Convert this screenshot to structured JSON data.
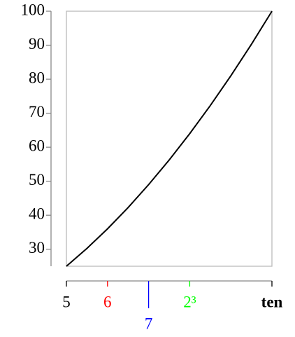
{
  "chart_data": {
    "type": "line",
    "x": [
      5,
      5.5,
      6,
      6.5,
      7,
      7.5,
      8,
      8.5,
      9,
      9.5,
      10
    ],
    "series": [
      {
        "color": "#000000",
        "values": [
          25,
          30.25,
          36,
          42.25,
          49,
          56.25,
          64,
          72.25,
          81,
          90.25,
          100
        ]
      }
    ],
    "xlim": [
      5,
      10
    ],
    "xticks": [
      5,
      6,
      7,
      {
        "value": 8,
        "label": "2³"
      },
      {
        "value": 10,
        "label": "ten"
      }
    ],
    "xtick_colors": [
      "#000000",
      "#ff0000",
      "#0000ff",
      "#00ff00",
      "#000000"
    ],
    "ylim": [
      25,
      100
    ],
    "yticks": [
      30,
      40,
      50,
      60,
      70,
      80,
      90,
      100
    ]
  }
}
